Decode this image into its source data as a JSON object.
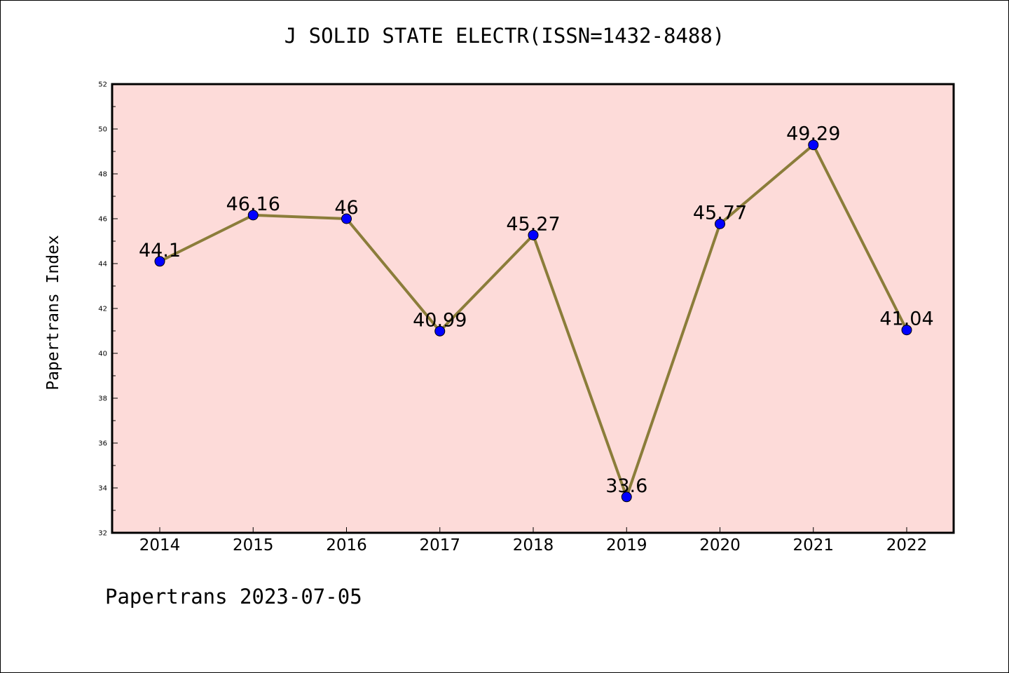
{
  "chart_data": {
    "type": "line",
    "title": "J SOLID STATE ELECTR(ISSN=1432-8488)",
    "ylabel": "Papertrans Index",
    "xlabel": "",
    "categories": [
      "2014",
      "2015",
      "2016",
      "2017",
      "2018",
      "2019",
      "2020",
      "2021",
      "2022"
    ],
    "values": [
      44.1,
      46.16,
      46,
      40.99,
      45.27,
      33.6,
      45.77,
      49.29,
      41.04
    ],
    "value_labels": [
      "44.1",
      "46.16",
      "46",
      "40.99",
      "45.27",
      "33.6",
      "45.77",
      "49.29",
      "41.04"
    ],
    "ylim": [
      32,
      52
    ],
    "yticks": [
      "32",
      "34",
      "36",
      "38",
      "40",
      "42",
      "44",
      "46",
      "48",
      "50",
      "52"
    ],
    "grid": false,
    "legend": "none",
    "colors": {
      "plot_background": "#fddbd9",
      "line": "#8b7d3a",
      "marker": "#0000ff"
    }
  },
  "footer": "Papertrans 2023-07-05"
}
